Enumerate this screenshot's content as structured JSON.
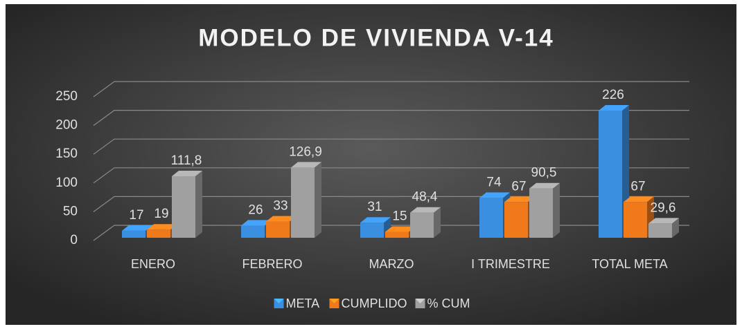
{
  "chart_data": {
    "type": "bar3d",
    "title": "MODELO DE VIVIENDA V-14",
    "categories": [
      "ENERO",
      "FEBRERO",
      "MARZO",
      "I TRIMESTRE",
      "TOTAL META"
    ],
    "series": [
      {
        "name": "META",
        "color": "#3a8fe0",
        "values": [
          17,
          26,
          31,
          74,
          226
        ]
      },
      {
        "name": "CUMPLIDO",
        "color": "#f07a1a",
        "values": [
          19,
          33,
          15,
          67,
          67
        ]
      },
      {
        "name": "% CUM",
        "color": "#a0a0a0",
        "values": [
          111.8,
          126.9,
          48.4,
          90.5,
          29.6
        ],
        "value_labels": [
          "111,8",
          "126,9",
          "48,4",
          "90,5",
          "29,6"
        ]
      }
    ],
    "ylim": [
      0,
      250
    ],
    "yticks": [
      0,
      50,
      100,
      150,
      200,
      250
    ],
    "grid": true,
    "legend": "bottom"
  }
}
